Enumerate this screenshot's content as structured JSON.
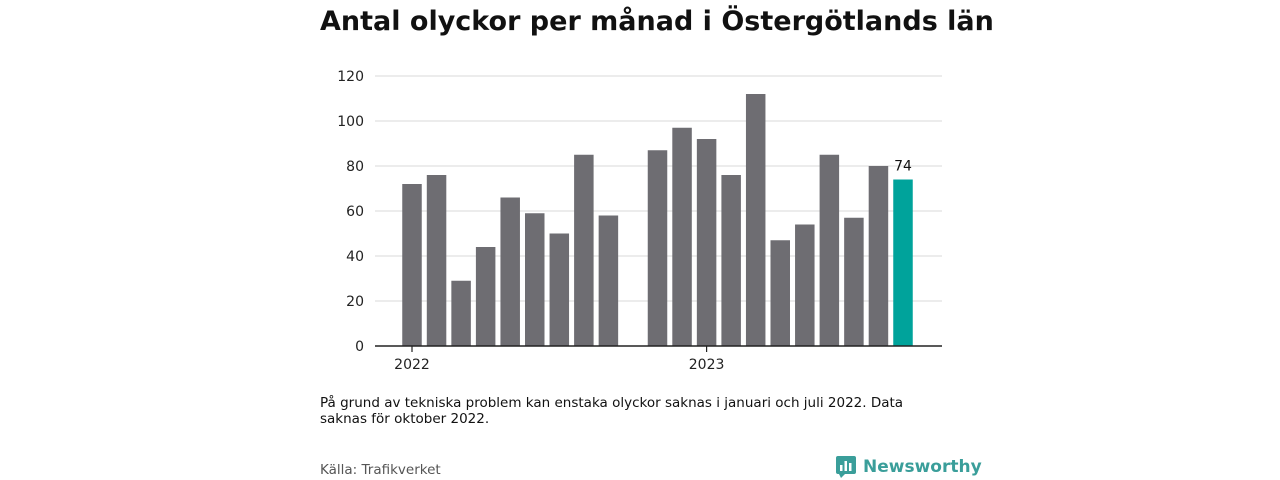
{
  "title": "Antal olyckor per månad i Östergötlands län",
  "note": "På grund av tekniska problem kan enstaka olyckor saknas i januari och juli 2022. Data saknas för oktober 2022.",
  "source": "Källa: Trafikverket",
  "brand": {
    "name": "Newsworthy",
    "icon": "newsworthy-bar-chart-icon"
  },
  "colors": {
    "bar": "#6e6d72",
    "highlight": "#00a39b",
    "grid": "#d9d9d9",
    "axis": "#222222",
    "brand": "#3a9e9a"
  },
  "chart_data": {
    "type": "bar",
    "categories": [
      "2022-01",
      "2022-02",
      "2022-03",
      "2022-04",
      "2022-05",
      "2022-06",
      "2022-07",
      "2022-08",
      "2022-09",
      "2022-10",
      "2022-11",
      "2022-12",
      "2023-01",
      "2023-02",
      "2023-03",
      "2023-04",
      "2023-05",
      "2023-06",
      "2023-07",
      "2023-08",
      "2023-09",
      "2023-10",
      "2023-11",
      "2023-12"
    ],
    "values": [
      72,
      76,
      29,
      44,
      66,
      59,
      50,
      85,
      58,
      null,
      87,
      97,
      92,
      76,
      112,
      47,
      54,
      85,
      57,
      80,
      74,
      null,
      null,
      null
    ],
    "highlight_index": 20,
    "highlight_label": "74",
    "x_tick_labels": [
      {
        "label": "2022",
        "category": "2022-01"
      },
      {
        "label": "2023",
        "category": "2023-01"
      }
    ],
    "yticks": [
      0,
      20,
      40,
      60,
      80,
      100,
      120
    ],
    "ylim": [
      0,
      120
    ],
    "grid": true,
    "legend": "none"
  }
}
